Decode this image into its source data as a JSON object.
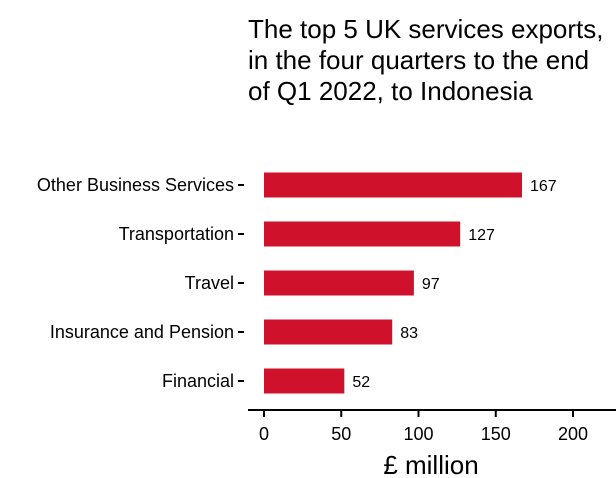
{
  "chart_data": {
    "type": "bar",
    "orientation": "horizontal",
    "title": "The top 5 UK services exports, in the four quarters to the end of Q1 2022, to Indonesia",
    "categories": [
      "Other Business Services",
      "Transportation",
      "Travel",
      "Insurance and Pension",
      "Financial"
    ],
    "values": [
      167,
      127,
      97,
      83,
      52
    ],
    "data_labels": [
      "167",
      "127",
      "97",
      "83",
      "52"
    ],
    "xlabel": "£ million",
    "ylabel": "",
    "xlim": [
      0,
      200
    ],
    "x_ticks": [
      0,
      50,
      100,
      150,
      200
    ],
    "x_tick_labels": [
      "0",
      "50",
      "100",
      "150",
      "200"
    ],
    "bar_color": "#d0112b",
    "grid": false,
    "legend": "none"
  }
}
